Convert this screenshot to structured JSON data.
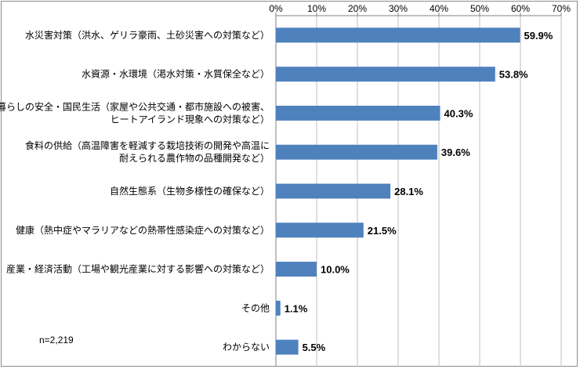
{
  "chart_data": {
    "type": "bar",
    "orientation": "horizontal",
    "categories": [
      [
        "水災害対策（洪水、ゲリラ豪雨、土砂災害への対策など）"
      ],
      [
        "水資源・水環境（渇水対策・水質保全など）"
      ],
      [
        "暮らしの安全・国民生活（家屋や公共交通・都市施設への被害、",
        "ヒートアイランド現象への対策など）"
      ],
      [
        "食料の供給（高温障害を軽減する栽培技術の開発や高温に",
        "耐えられる農作物の品種開発など）"
      ],
      [
        "自然生態系（生物多様性の確保など）"
      ],
      [
        "健康（熱中症やマラリアなどの熱帯性感染症への対策など）"
      ],
      [
        "産業・経済活動（工場や観光産業に対する影響への対策など）"
      ],
      [
        "その他"
      ],
      [
        "わからない"
      ]
    ],
    "values": [
      59.9,
      53.8,
      40.3,
      39.6,
      28.1,
      21.5,
      10.0,
      1.1,
      5.5
    ],
    "value_labels": [
      "59.9%",
      "53.8%",
      "40.3%",
      "39.6%",
      "28.1%",
      "21.5%",
      "10.0%",
      "1.1%",
      "5.5%"
    ],
    "xlim": [
      0,
      70
    ],
    "xticks": [
      0,
      10,
      20,
      30,
      40,
      50,
      60,
      70
    ],
    "xtick_labels": [
      "0%",
      "10%",
      "20%",
      "30%",
      "40%",
      "50%",
      "60%",
      "70%"
    ],
    "axis_position": "top",
    "grid": true,
    "bar_color": "#4f81bd",
    "title": "",
    "xlabel": "",
    "ylabel": ""
  },
  "note": "n=2,219"
}
